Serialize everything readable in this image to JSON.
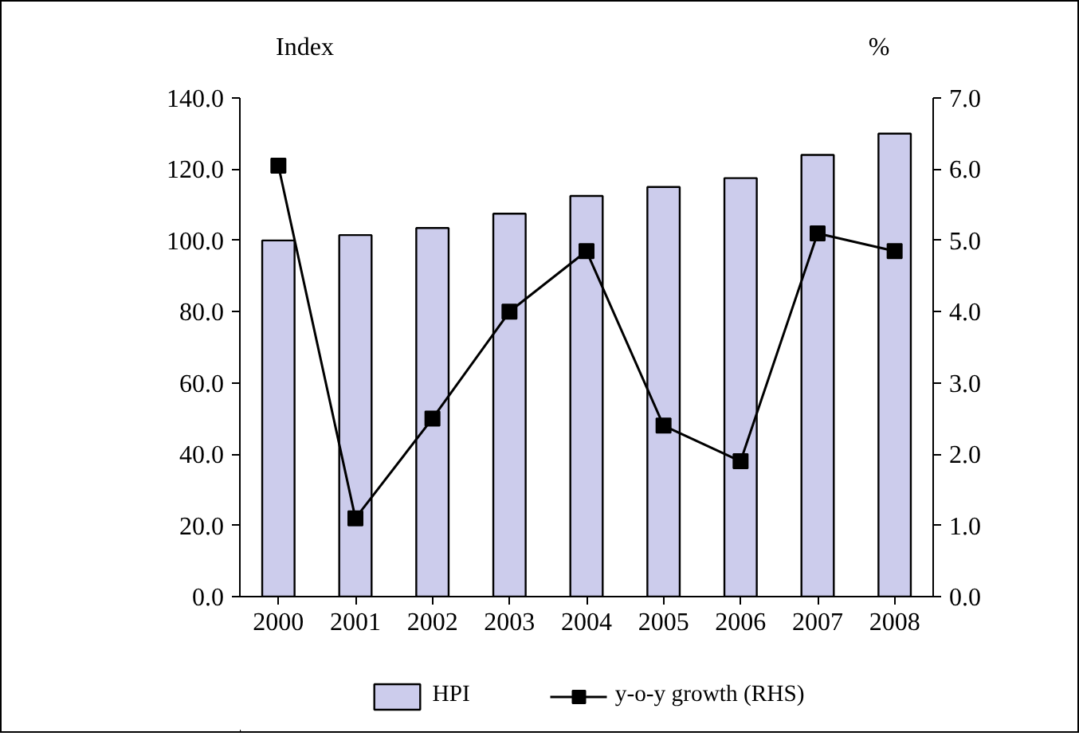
{
  "chart_data": {
    "type": "bar",
    "categories": [
      "2000",
      "2001",
      "2002",
      "2003",
      "2004",
      "2005",
      "2006",
      "2007",
      "2008"
    ],
    "ylabel": "Index",
    "y2label": "%",
    "ylim": [
      0,
      140
    ],
    "yticks": [
      {
        "value": 0,
        "label": "0.0"
      },
      {
        "value": 20,
        "label": "20.0"
      },
      {
        "value": 40,
        "label": "40.0"
      },
      {
        "value": 60,
        "label": "60.0"
      },
      {
        "value": 80,
        "label": "80.0"
      },
      {
        "value": 100,
        "label": "100.0"
      },
      {
        "value": 120,
        "label": "120.0"
      },
      {
        "value": 140,
        "label": "140.0"
      }
    ],
    "y2lim": [
      0,
      7
    ],
    "y2ticks": [
      {
        "value": 0,
        "label": "0.0"
      },
      {
        "value": 1,
        "label": "1.0"
      },
      {
        "value": 2,
        "label": "2.0"
      },
      {
        "value": 3,
        "label": "3.0"
      },
      {
        "value": 4,
        "label": "4.0"
      },
      {
        "value": 5,
        "label": "5.0"
      },
      {
        "value": 6,
        "label": "6.0"
      },
      {
        "value": 7,
        "label": "7.0"
      }
    ],
    "series": [
      {
        "name": "HPI",
        "color": "#ccccec",
        "values": [
          100,
          101.5,
          103.5,
          107.5,
          112.5,
          115,
          117.5,
          124,
          130
        ]
      },
      {
        "name": "y-o-y growth (RHS)",
        "type": "line",
        "axis": "y2",
        "color": "#000000",
        "marker": "square",
        "values": [
          6.05,
          1.1,
          2.5,
          4.0,
          4.85,
          2.4,
          1.9,
          5.1,
          4.85
        ]
      }
    ],
    "legend": "bottom"
  }
}
